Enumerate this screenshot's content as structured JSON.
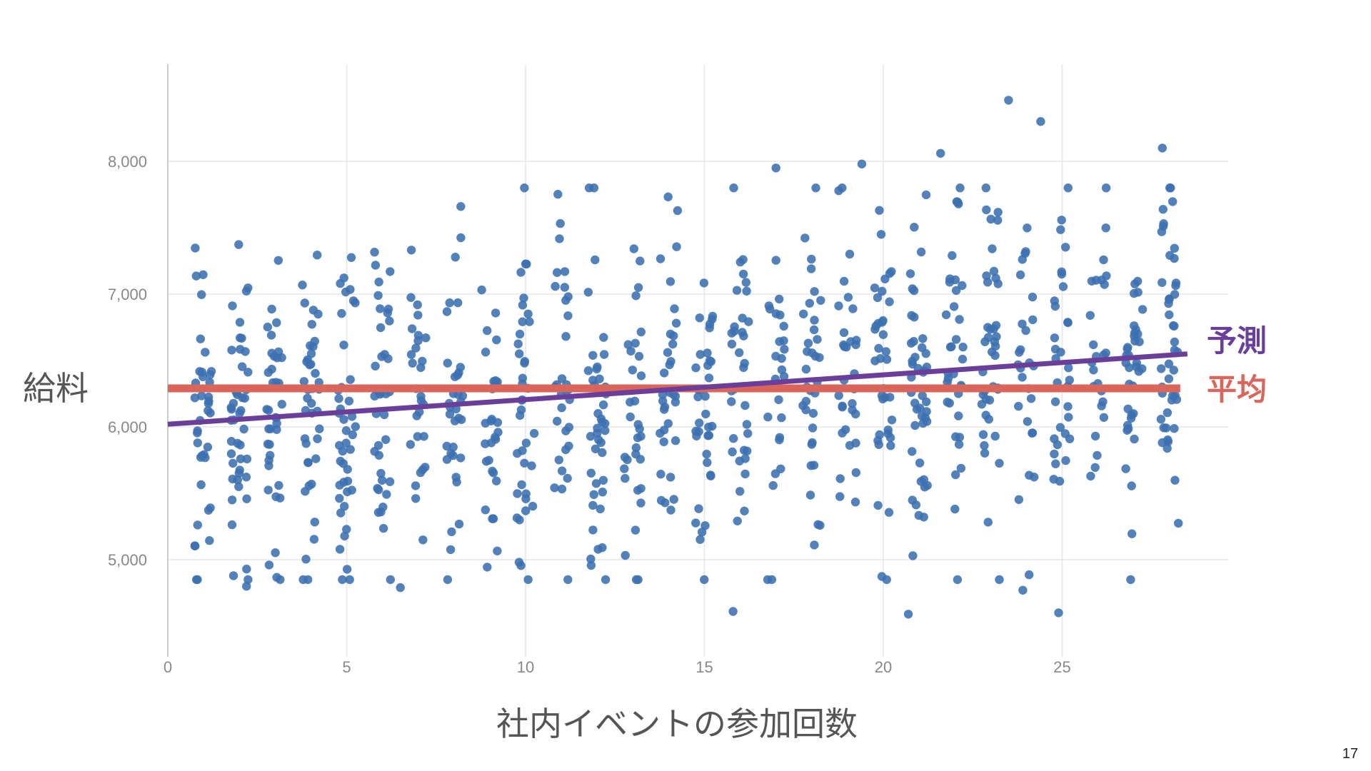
{
  "slide": {
    "page_number": "17"
  },
  "chart_data": {
    "type": "scatter",
    "title": "",
    "xlabel": "社内イベントの参加回数",
    "ylabel": "給料",
    "xlim": [
      0,
      29.5
    ],
    "ylim": [
      4300,
      8750
    ],
    "x_ticks": [
      0,
      5,
      10,
      15,
      20,
      25
    ],
    "x_tick_labels": [
      "0",
      "5",
      "10",
      "15",
      "20",
      "25"
    ],
    "y_ticks": [
      5000,
      6000,
      7000,
      8000
    ],
    "y_tick_labels": [
      "5,000",
      "6,000",
      "7,000",
      "8,000"
    ],
    "grid": true,
    "colors": {
      "points": "#3b6fb0",
      "prediction": "#6b3f99",
      "mean": "#d9655b",
      "grid": "#e6e6e6",
      "axis": "#cccccc"
    },
    "mean_line": {
      "label": "平均",
      "y": 6290,
      "x_range": [
        0,
        28.3
      ]
    },
    "prediction_line": {
      "label": "予測",
      "x_range": [
        0,
        28.3
      ],
      "y_range": [
        6020,
        6550
      ]
    },
    "points": {
      "count": 1000,
      "x_range": [
        1,
        28
      ],
      "x_values": "integer counts from 1 to 28, uniformly distributed",
      "mean_trend": [
        6020,
        6550
      ],
      "spread_sd": 620,
      "notable": [
        {
          "x": 23.5,
          "y": 8460
        },
        {
          "x": 24.4,
          "y": 8300
        },
        {
          "x": 27.8,
          "y": 8100
        },
        {
          "x": 21.6,
          "y": 8060
        },
        {
          "x": 19.4,
          "y": 7980
        },
        {
          "x": 17.0,
          "y": 7950
        },
        {
          "x": 15.8,
          "y": 4610
        },
        {
          "x": 20.7,
          "y": 4590
        },
        {
          "x": 24.9,
          "y": 4600
        },
        {
          "x": 2.2,
          "y": 4800
        },
        {
          "x": 6.5,
          "y": 4790
        },
        {
          "x": 23.9,
          "y": 4770
        }
      ]
    }
  }
}
